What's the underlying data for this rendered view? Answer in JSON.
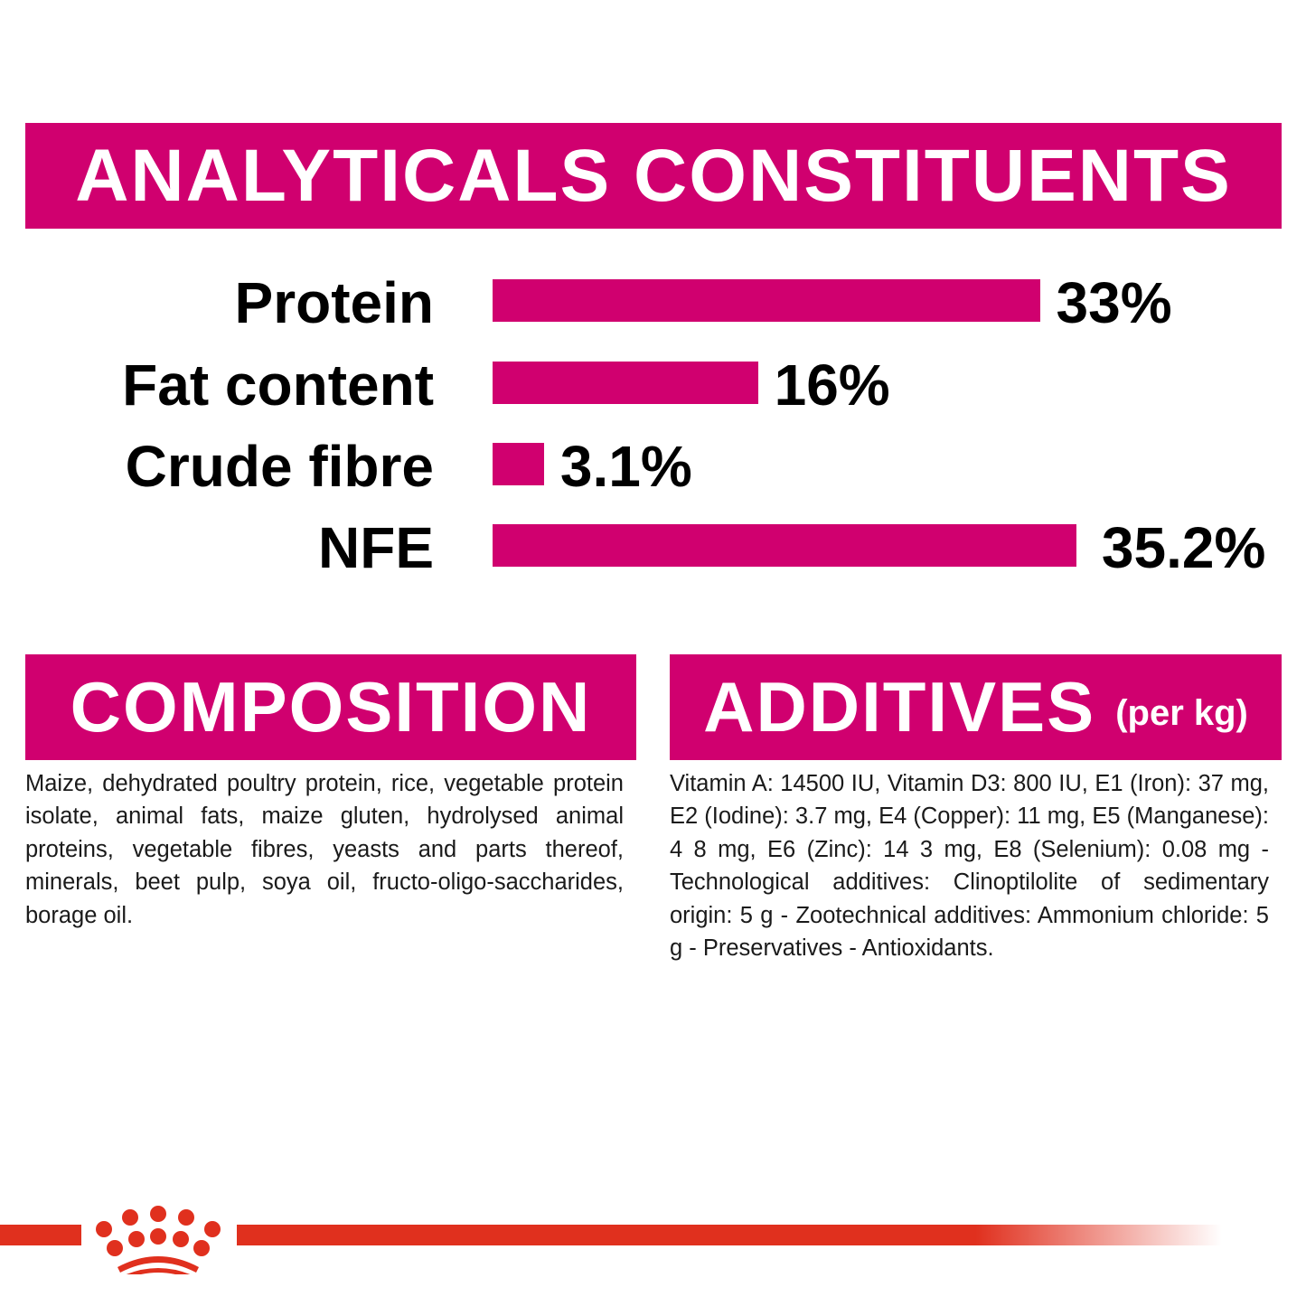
{
  "header": {
    "title": "ANALYTICALS CONSTITUENTS"
  },
  "chart_data": {
    "type": "bar",
    "orientation": "horizontal",
    "categories": [
      "Protein",
      "Fat content",
      "Crude fibre",
      "NFE"
    ],
    "values": [
      33,
      16,
      3.1,
      35.2
    ],
    "data_labels": [
      "33%",
      "16%",
      "3.1%",
      "35.2%"
    ],
    "unit": "%",
    "color": "#D0006F",
    "grid": false
  },
  "composition": {
    "title": "COMPOSITION",
    "text": "Maize, dehydrated poultry protein, rice, vegetable protein isolate, animal fats, maize gluten, hydrolysed animal proteins, vegetable fibres, yeasts and parts thereof, minerals, beet pulp, soya oil, fructo-oligo-saccharides, borage oil."
  },
  "additives": {
    "title": "ADDITIVES",
    "subtitle": "(per kg)",
    "text": "Vitamin A: 14500 IU, Vitamin D3: 800 IU, E1 (Iron): 37 mg, E2 (Iodine): 3.7 mg, E4 (Copper): 11 mg, E5 (Manganese): 4 8 mg, E6 (Zinc): 14 3 mg, E8 (Selenium): 0.08 mg -Technological additives: Clinoptilolite of sedimentary origin: 5 g - Zootechnical additives: Ammonium chloride: 5 g - Preservatives - Antioxidants."
  },
  "colors": {
    "accent": "#D0006F",
    "brand_red": "#E0301E"
  },
  "footer": {
    "logo_icon": "royal-canin-crown-icon"
  }
}
